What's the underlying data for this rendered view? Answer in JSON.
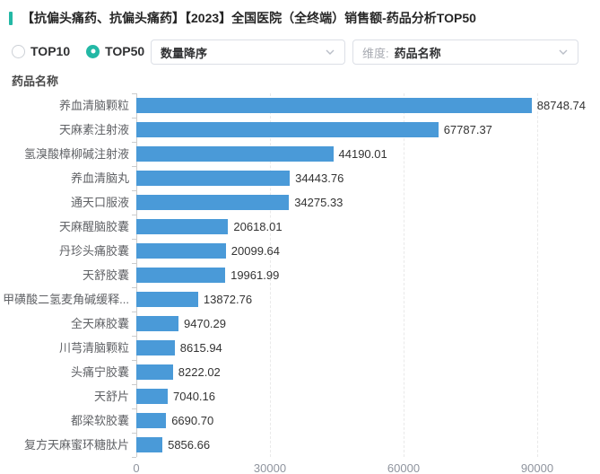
{
  "header": {
    "title": "【抗偏头痛药、抗偏头痛药】【2023】全国医院（全终端）销售额-药品分析TOP50"
  },
  "controls": {
    "radios": [
      {
        "label": "TOP10",
        "selected": false
      },
      {
        "label": "TOP50",
        "selected": true
      }
    ],
    "sort_dropdown": {
      "value": "数量降序"
    },
    "dimension_dropdown": {
      "prefix": "维度:",
      "value": "药品名称"
    }
  },
  "chart_data": {
    "type": "bar",
    "orientation": "horizontal",
    "axis_title": "药品名称",
    "categories": [
      "养血清脑颗粒",
      "天麻素注射液",
      "氢溴酸樟柳碱注射液",
      "养血清脑丸",
      "通天口服液",
      "天麻醒脑胶囊",
      "丹珍头痛胶囊",
      "天舒胶囊",
      "甲磺酸二氢麦角碱缓释...",
      "全天麻胶囊",
      "川芎清脑颗粒",
      "头痛宁胶囊",
      "天舒片",
      "都梁软胶囊",
      "复方天麻蜜环糖肽片"
    ],
    "values": [
      88748.74,
      67787.37,
      44190.01,
      34443.76,
      34275.33,
      20618.01,
      20099.64,
      19961.99,
      13872.76,
      9470.29,
      8615.94,
      8222.02,
      7040.16,
      6690.7,
      5856.66
    ],
    "value_labels": [
      "88748.74",
      "67787.37",
      "44190.01",
      "34443.76",
      "34275.33",
      "20618.01",
      "20099.64",
      "19961.99",
      "13872.76",
      "9470.29",
      "8615.94",
      "8222.02",
      "7040.16",
      "6690.70",
      "5856.66"
    ],
    "x_ticks": [
      0,
      30000,
      60000,
      90000
    ],
    "xlim": [
      0,
      97000
    ],
    "grid": true,
    "legend": false,
    "bar_color": "#4a9ad8"
  },
  "colors": {
    "accent_teal": "#23b8a5",
    "bar_blue": "#4a9ad8"
  }
}
